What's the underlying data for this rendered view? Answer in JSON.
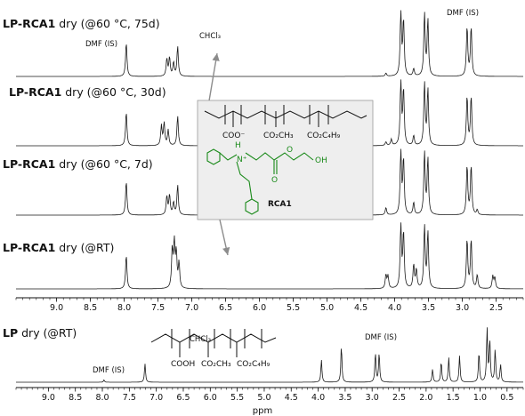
{
  "chart_data": [
    {
      "type": "line",
      "xlabel": "",
      "x_reversed": true,
      "xlim": [
        9.6,
        2.1
      ],
      "xticks": [
        "9.0",
        "8.5",
        "8.0",
        "7.5",
        "7.0",
        "6.5",
        "6.0",
        "5.5",
        "5.0",
        "4.5",
        "4.0",
        "3.5",
        "3.0",
        "2.5"
      ],
      "series": [
        {
          "label_bold": "LP-RCA1",
          "label_rest": " dry (@60 °C, 75d)",
          "peaks": [
            [
              7.97,
              0.55
            ],
            [
              7.37,
              0.28
            ],
            [
              7.33,
              0.3
            ],
            [
              7.27,
              0.22
            ],
            [
              7.21,
              0.48
            ],
            [
              4.13,
              0.05
            ],
            [
              3.91,
              1.0
            ],
            [
              3.87,
              0.9
            ],
            [
              3.72,
              0.12
            ],
            [
              3.56,
              1.0
            ],
            [
              3.51,
              0.9
            ],
            [
              2.93,
              0.8
            ],
            [
              2.87,
              0.8
            ]
          ],
          "annotations": [
            "DMF (IS)",
            "CHCl₃",
            "DMF (IS)"
          ]
        },
        {
          "label_bold": "LP-RCA1",
          "label_rest": " dry (@60 °C, 30d)",
          "peaks": [
            [
              7.97,
              0.55
            ],
            [
              7.45,
              0.32
            ],
            [
              7.41,
              0.36
            ],
            [
              7.35,
              0.25
            ],
            [
              7.21,
              0.48
            ],
            [
              4.13,
              0.06
            ],
            [
              4.05,
              0.1
            ],
            [
              3.91,
              1.0
            ],
            [
              3.87,
              0.9
            ],
            [
              3.72,
              0.16
            ],
            [
              3.56,
              1.0
            ],
            [
              3.51,
              0.9
            ],
            [
              2.93,
              0.8
            ],
            [
              2.87,
              0.8
            ]
          ],
          "annotations": []
        },
        {
          "label_bold": "LP-RCA1",
          "label_rest": " dry (@60 °C, 7d)",
          "peaks": [
            [
              7.97,
              0.55
            ],
            [
              7.37,
              0.3
            ],
            [
              7.33,
              0.32
            ],
            [
              7.27,
              0.2
            ],
            [
              7.21,
              0.48
            ],
            [
              4.13,
              0.12
            ],
            [
              3.91,
              1.0
            ],
            [
              3.87,
              0.9
            ],
            [
              3.72,
              0.2
            ],
            [
              3.56,
              1.0
            ],
            [
              3.51,
              0.9
            ],
            [
              2.93,
              0.8
            ],
            [
              2.87,
              0.8
            ],
            [
              2.78,
              0.08
            ]
          ],
          "annotations": []
        },
        {
          "label_bold": "LP-RCA1",
          "label_rest": " dry (@RT)",
          "peaks": [
            [
              7.97,
              0.55
            ],
            [
              7.29,
              0.6
            ],
            [
              7.26,
              0.7
            ],
            [
              7.23,
              0.55
            ],
            [
              7.19,
              0.4
            ],
            [
              4.13,
              0.22
            ],
            [
              4.1,
              0.2
            ],
            [
              3.91,
              1.0
            ],
            [
              3.87,
              0.9
            ],
            [
              3.72,
              0.38
            ],
            [
              3.68,
              0.3
            ],
            [
              3.56,
              1.0
            ],
            [
              3.51,
              0.9
            ],
            [
              2.93,
              0.8
            ],
            [
              2.87,
              0.8
            ],
            [
              2.78,
              0.22
            ],
            [
              2.55,
              0.2
            ],
            [
              2.52,
              0.18
            ]
          ],
          "annotations": []
        }
      ]
    },
    {
      "type": "line",
      "xlabel": "ppm",
      "x_reversed": true,
      "xlim": [
        9.6,
        0.2
      ],
      "xticks": [
        "9.0",
        "8.5",
        "8.0",
        "7.5",
        "7.0",
        "6.5",
        "6.0",
        "5.5",
        "5.0",
        "4.5",
        "4.0",
        "3.5",
        "3.0",
        "2.5",
        "2.0",
        "1.5",
        "1.0",
        "0.5"
      ],
      "series": [
        {
          "label_bold": "LP",
          "label_rest": " dry (@RT)",
          "peaks": [
            [
              7.97,
              0.04
            ],
            [
              7.21,
              0.32
            ],
            [
              3.94,
              0.38
            ],
            [
              3.57,
              0.62
            ],
            [
              2.94,
              0.5
            ],
            [
              2.87,
              0.5
            ],
            [
              1.88,
              0.22
            ],
            [
              1.72,
              0.35
            ],
            [
              1.58,
              0.42
            ],
            [
              1.38,
              0.45
            ],
            [
              1.02,
              0.52
            ],
            [
              0.87,
              0.9
            ],
            [
              0.82,
              0.72
            ],
            [
              0.72,
              0.55
            ],
            [
              0.62,
              0.3
            ]
          ],
          "annotations": [
            "DMF (IS)",
            "CHCl₃",
            "DMF (IS)"
          ]
        }
      ]
    }
  ],
  "chem": {
    "rca1_groups": [
      "COO⁻",
      "CO₂CH₃",
      "CO₂C₄H₉"
    ],
    "rca1_amine": "N⁺",
    "rca1_oxy": [
      "O",
      "O",
      "OH"
    ],
    "rca1_name": "RCA1",
    "rca1_h": "H",
    "lp_groups": [
      "COOH",
      "CO₂CH₃",
      "CO₂C₄H₉"
    ]
  },
  "colors": {
    "trace": "#1a1a1a",
    "green": "#1a8a1a",
    "box": "#eeeeee",
    "arrow": "#8c8c8c"
  }
}
